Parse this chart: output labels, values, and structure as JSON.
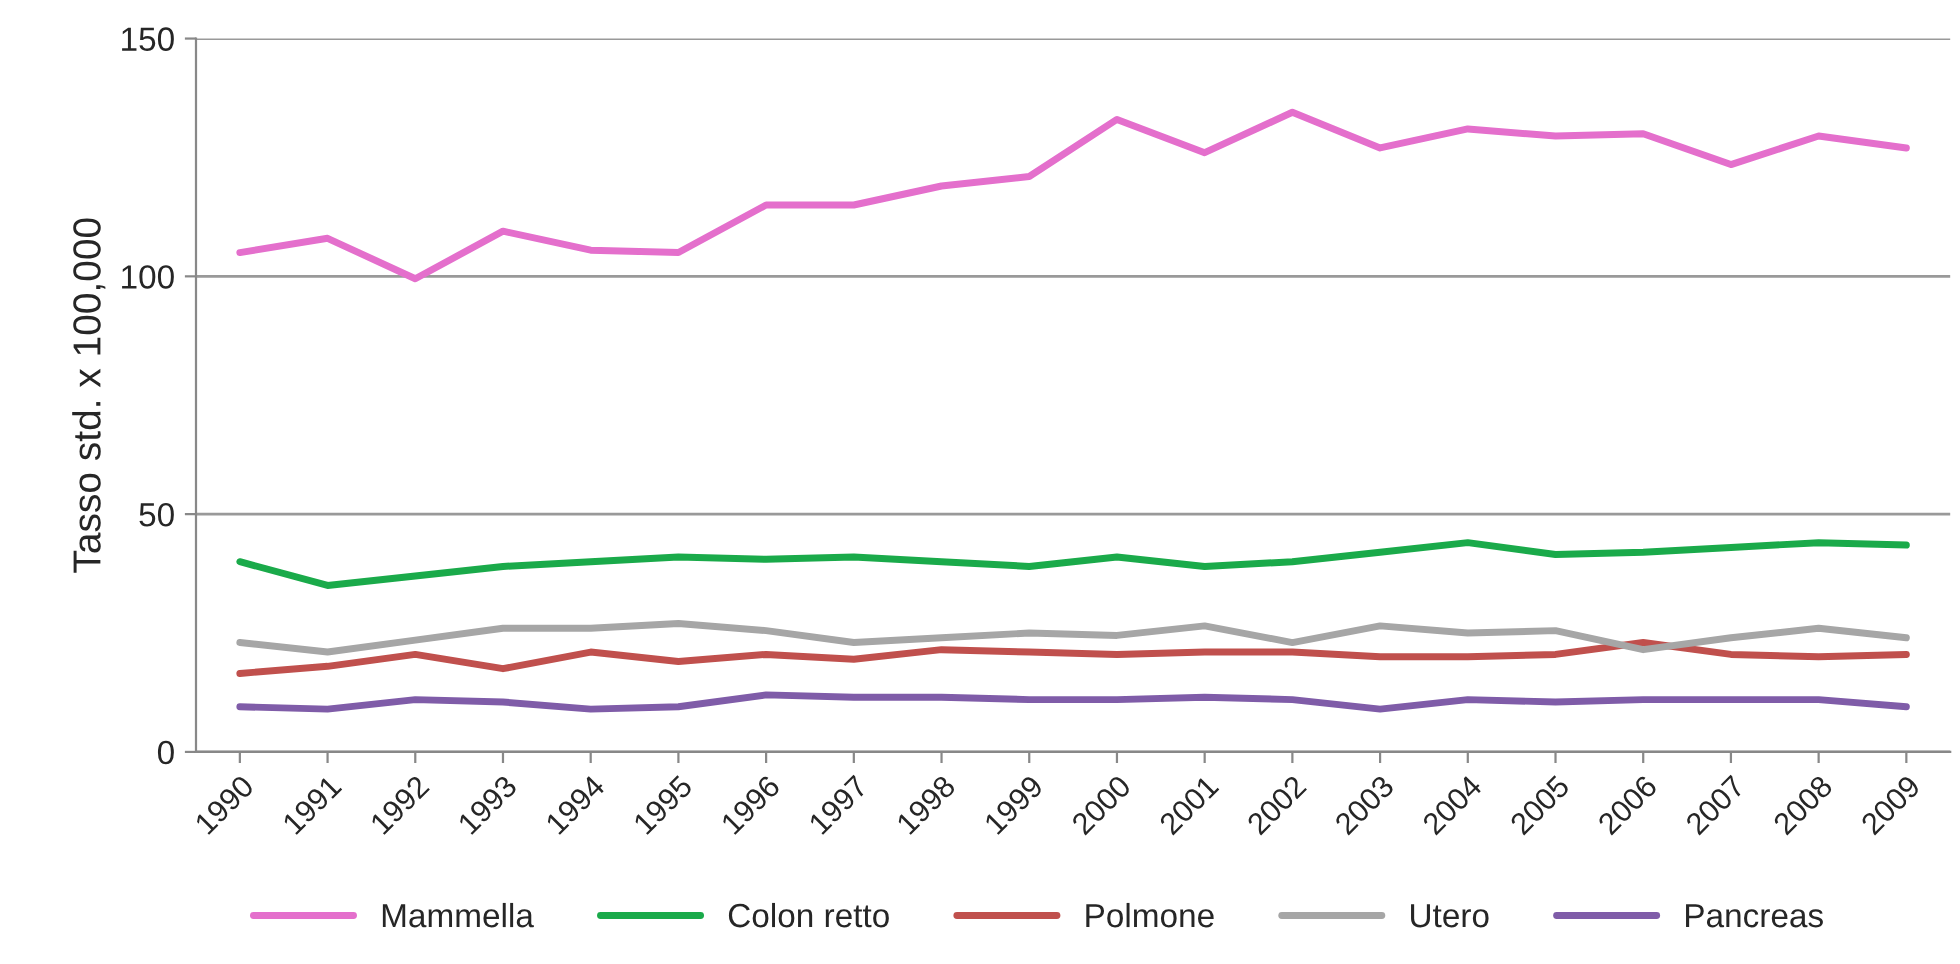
{
  "chart_data": {
    "type": "line",
    "ylabel": "Tasso std. x 100,000",
    "categories": [
      "1990",
      "1991",
      "1992",
      "1993",
      "1994",
      "1995",
      "1996",
      "1997",
      "1998",
      "1999",
      "2000",
      "2001",
      "2002",
      "2003",
      "2004",
      "2005",
      "2006",
      "2007",
      "2008",
      "2009"
    ],
    "series": [
      {
        "name": "Mammella",
        "color": "#e46fcc",
        "values": [
          105,
          108,
          99.5,
          109.5,
          105.5,
          105,
          115,
          115,
          119,
          121,
          133,
          126,
          134.5,
          127,
          131,
          129.5,
          130,
          123.5,
          129.5,
          127
        ]
      },
      {
        "name": "Colon retto",
        "color": "#1aaa4a",
        "values": [
          40,
          35,
          37,
          39,
          40,
          41,
          40.5,
          41,
          40,
          39,
          41,
          39,
          40,
          42,
          44,
          41.5,
          42,
          43,
          44,
          43.5
        ]
      },
      {
        "name": "Polmone",
        "color": "#c0504d",
        "values": [
          16.5,
          18,
          20.5,
          17.5,
          21,
          19,
          20.5,
          19.5,
          21.5,
          21,
          20.5,
          21,
          21,
          20,
          20,
          20.5,
          23,
          20.5,
          20,
          20.5
        ]
      },
      {
        "name": "Utero",
        "color": "#a6a6a6",
        "values": [
          23,
          21,
          23.5,
          26,
          26,
          27,
          25.5,
          23,
          24,
          25,
          24.5,
          26.5,
          23,
          26.5,
          25,
          25.5,
          21.5,
          24,
          26,
          24
        ]
      },
      {
        "name": "Pancreas",
        "color": "#7f5ca8",
        "values": [
          9.5,
          9,
          11,
          10.5,
          9,
          9.5,
          12,
          11.5,
          11.5,
          11,
          11,
          11.5,
          11,
          9,
          11,
          10.5,
          11,
          11,
          11,
          9.5
        ]
      }
    ],
    "ylim": [
      0,
      150
    ],
    "yticks": [
      0,
      50,
      100,
      150
    ],
    "grid": "y",
    "legend": "bottom",
    "marker": "none",
    "line_style": "solid"
  }
}
